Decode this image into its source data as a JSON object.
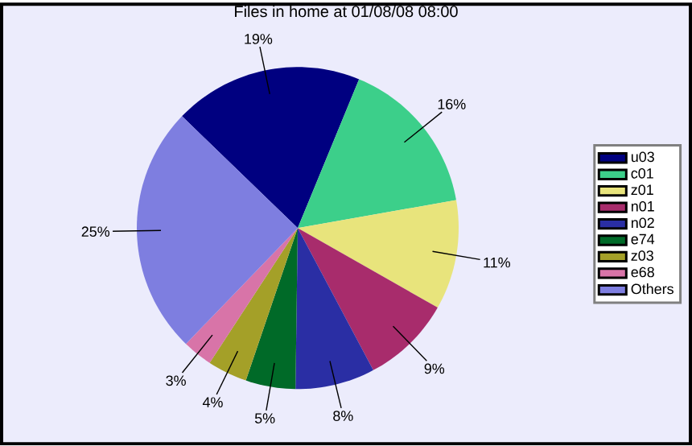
{
  "chart_data": {
    "type": "pie",
    "title": "Files in home at 01/08/08 08:00",
    "categories": [
      "u03",
      "c01",
      "z01",
      "n01",
      "n02",
      "e74",
      "z03",
      "e68",
      "Others"
    ],
    "values": [
      19,
      16,
      11,
      9,
      8,
      5,
      4,
      3,
      25
    ],
    "value_labels": [
      "19%",
      "16%",
      "11%",
      "9%",
      "8%",
      "5%",
      "4%",
      "3%",
      "25%"
    ],
    "colors": [
      "#000080",
      "#3ccf8a",
      "#e8e47c",
      "#a82c6c",
      "#2a2ea4",
      "#006a28",
      "#a4a028",
      "#d874a8",
      "#7e7ee0"
    ],
    "legend": "right"
  }
}
